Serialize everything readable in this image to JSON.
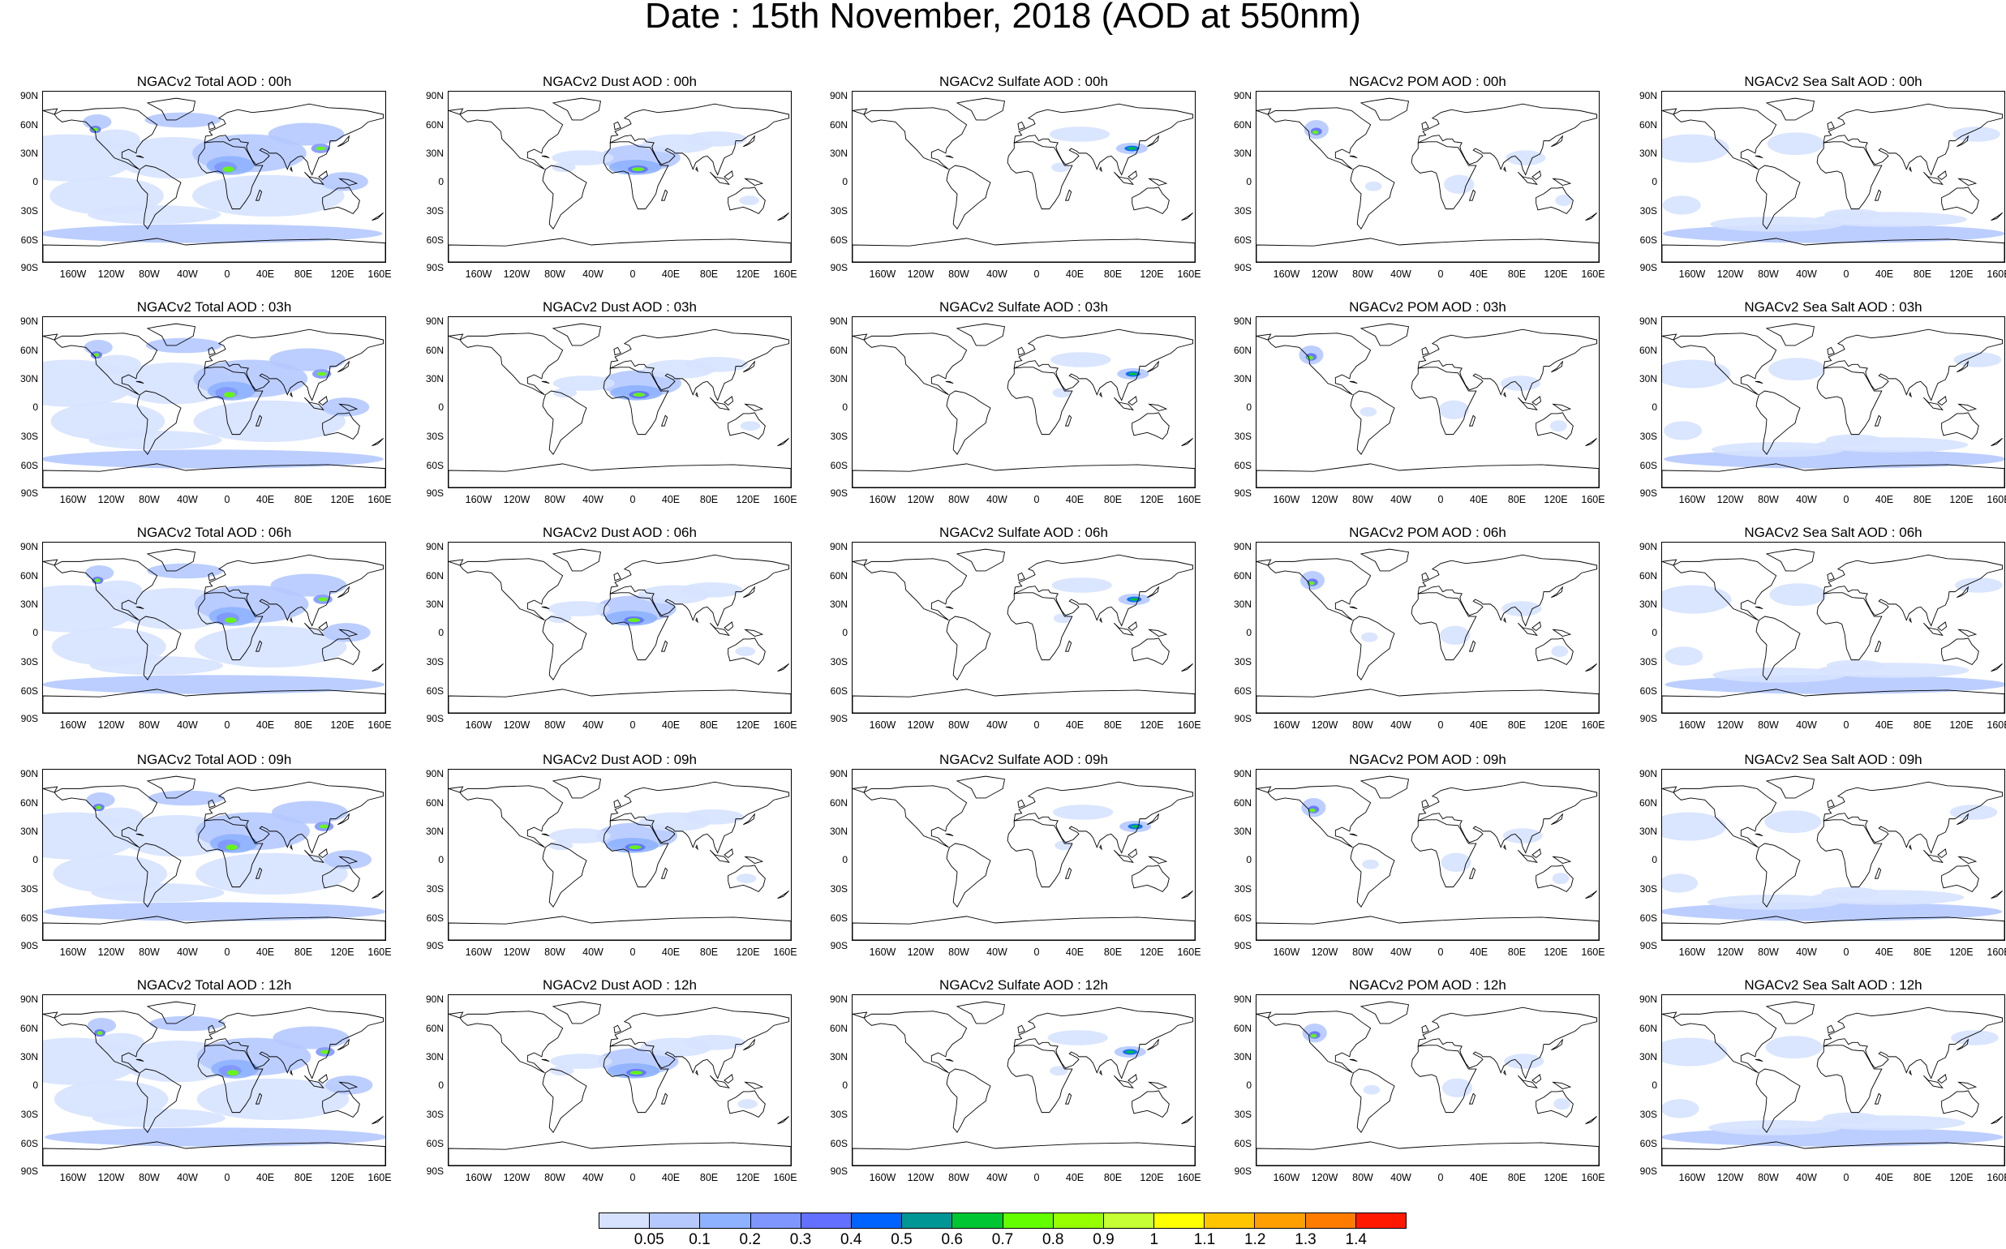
{
  "title": "Date : 15th November, 2018 (AOD at 550nm)",
  "panels": [
    {
      "title": "NGACv2 Total AOD : 00h",
      "species": "total",
      "hour": "00h"
    },
    {
      "title": "NGACv2 Dust AOD : 00h",
      "species": "dust",
      "hour": "00h"
    },
    {
      "title": "NGACv2 Sulfate AOD : 00h",
      "species": "sulfate",
      "hour": "00h"
    },
    {
      "title": "NGACv2 POM AOD : 00h",
      "species": "pom",
      "hour": "00h"
    },
    {
      "title": "NGACv2 Sea Salt AOD : 00h",
      "species": "seasalt",
      "hour": "00h"
    },
    {
      "title": "NGACv2 Total AOD : 03h",
      "species": "total",
      "hour": "03h"
    },
    {
      "title": "NGACv2 Dust AOD : 03h",
      "species": "dust",
      "hour": "03h"
    },
    {
      "title": "NGACv2 Sulfate AOD : 03h",
      "species": "sulfate",
      "hour": "03h"
    },
    {
      "title": "NGACv2 POM AOD : 03h",
      "species": "pom",
      "hour": "03h"
    },
    {
      "title": "NGACv2 Sea Salt AOD : 03h",
      "species": "seasalt",
      "hour": "03h"
    },
    {
      "title": "NGACv2 Total AOD : 06h",
      "species": "total",
      "hour": "06h"
    },
    {
      "title": "NGACv2 Dust AOD : 06h",
      "species": "dust",
      "hour": "06h"
    },
    {
      "title": "NGACv2 Sulfate AOD : 06h",
      "species": "sulfate",
      "hour": "06h"
    },
    {
      "title": "NGACv2 POM AOD : 06h",
      "species": "pom",
      "hour": "06h"
    },
    {
      "title": "NGACv2 Sea Salt AOD : 06h",
      "species": "seasalt",
      "hour": "06h"
    },
    {
      "title": "NGACv2 Total AOD : 09h",
      "species": "total",
      "hour": "09h"
    },
    {
      "title": "NGACv2 Dust AOD : 09h",
      "species": "dust",
      "hour": "09h"
    },
    {
      "title": "NGACv2 Sulfate AOD : 09h",
      "species": "sulfate",
      "hour": "09h"
    },
    {
      "title": "NGACv2 POM AOD : 09h",
      "species": "pom",
      "hour": "09h"
    },
    {
      "title": "NGACv2 Sea Salt  AOD : 09h",
      "species": "seasalt",
      "hour": "09h"
    },
    {
      "title": "NGACv2 Total AOD  : 12h",
      "species": "total",
      "hour": "12h"
    },
    {
      "title": "NGACv2 Dust AOD : 12h",
      "species": "dust",
      "hour": "12h"
    },
    {
      "title": "NGACv2 Sulfate AOD : 12h",
      "species": "sulfate",
      "hour": "12h"
    },
    {
      "title": "NGACv2 POM  AOD : 12h",
      "species": "pom",
      "hour": "12h"
    },
    {
      "title": "NGACv2 Sea Salt  AOD : 12h",
      "species": "seasalt",
      "hour": "12h"
    }
  ],
  "lat_labels": [
    "90N",
    "60N",
    "30N",
    "0",
    "30S",
    "60S",
    "90S"
  ],
  "lon_labels": [
    "160W",
    "120W",
    "80W",
    "40W",
    "0",
    "40E",
    "80E",
    "120E",
    "160E"
  ],
  "colorbar": {
    "labels": [
      "0.05",
      "0.1",
      "0.2",
      "0.3",
      "0.4",
      "0.5",
      "0.6",
      "0.7",
      "0.8",
      "0.9",
      "1",
      "1.1",
      "1.2",
      "1.3",
      "1.4"
    ],
    "colors": [
      "#ffffff",
      "#d6e2ff",
      "#b5c9ff",
      "#8eb2ff",
      "#7f96ff",
      "#6370ff",
      "#0063ff",
      "#009696",
      "#00c633",
      "#63ff00",
      "#96ff00",
      "#c6ff33",
      "#ffff00",
      "#ffc600",
      "#ffa000",
      "#ff7c00",
      "#ff1900"
    ]
  }
}
